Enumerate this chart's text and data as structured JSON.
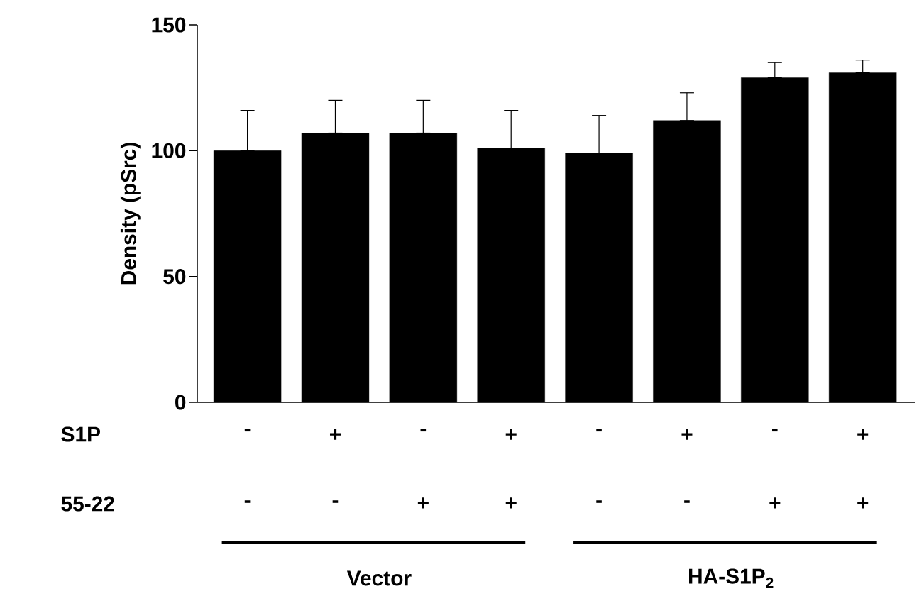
{
  "chart_data": {
    "type": "bar",
    "ylabel": "Density (pSrc)",
    "categories": [
      "-",
      "+",
      "-",
      "+",
      "-",
      "+",
      "-",
      "+"
    ],
    "values": [
      100,
      107,
      107,
      101,
      99,
      112,
      129,
      131
    ],
    "errors": [
      [
        100,
        116
      ],
      [
        107,
        120
      ],
      [
        107,
        120
      ],
      [
        101,
        116
      ],
      [
        99,
        114
      ],
      [
        112,
        123
      ],
      [
        129,
        135
      ],
      [
        131,
        136
      ]
    ],
    "color": "#000000",
    "ylim": [
      0,
      150
    ],
    "yticks": [
      0,
      50,
      100,
      150
    ],
    "grid": false,
    "annotations": [
      "S1P",
      "55-22",
      "-",
      "-",
      "+",
      "+",
      "-",
      "-",
      "+",
      "+",
      "Vector",
      "HA-S1P$_{2}$"
    ]
  }
}
